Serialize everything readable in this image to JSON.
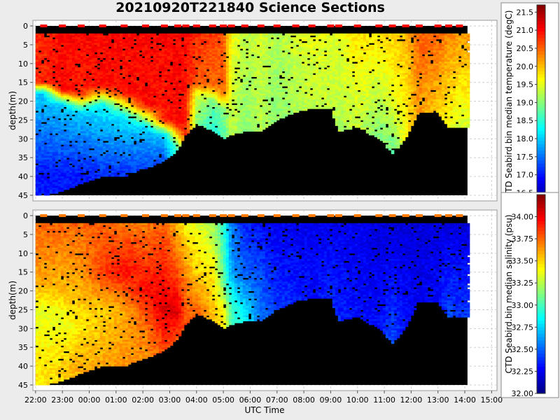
{
  "title": "20210920T221840 Science Sections",
  "chart_data": [
    {
      "type": "heatmap",
      "name": "temperature",
      "ylabel": "depth(m)",
      "ylim": [
        46.5,
        -1.5
      ],
      "yticks": [
        0,
        5,
        10,
        15,
        20,
        25,
        30,
        35,
        40,
        45
      ],
      "colorbar_label": "CTD Seabird.bin median temperature (degC)",
      "colorbar_range": [
        16.2,
        21.7
      ],
      "colorbar_ticks": [
        "16.5",
        "17.0",
        "17.5",
        "18.0",
        "18.5",
        "19.0",
        "19.5",
        "20.0",
        "20.5",
        "21.0",
        "21.5"
      ],
      "colorbar_tick_values": [
        16.5,
        17.0,
        17.5,
        18.0,
        18.5,
        19.0,
        19.5,
        20.0,
        20.5,
        21.0,
        21.5
      ],
      "surface_value": 21.0,
      "profiles": [
        {
          "t": 22.3,
          "bottom": 45,
          "pts": [
            [
              2,
              20.8
            ],
            [
              15,
              20.8
            ],
            [
              18,
              18.0
            ],
            [
              40,
              17.0
            ]
          ]
        },
        {
          "t": 23.0,
          "bottom": 44,
          "pts": [
            [
              2,
              21.0
            ],
            [
              17,
              21.0
            ],
            [
              21,
              18.0
            ],
            [
              40,
              17.0
            ]
          ]
        },
        {
          "t": 23.7,
          "bottom": 42,
          "pts": [
            [
              2,
              21.0
            ],
            [
              18,
              20.8
            ],
            [
              23,
              18.0
            ],
            [
              40,
              17.0
            ]
          ]
        },
        {
          "t": 24.5,
          "bottom": 40,
          "pts": [
            [
              2,
              21.0
            ],
            [
              16,
              21.0
            ],
            [
              21,
              18.2
            ],
            [
              40,
              17.1
            ]
          ]
        },
        {
          "t": 25.3,
          "bottom": 40,
          "pts": [
            [
              2,
              21.0
            ],
            [
              18,
              20.9
            ],
            [
              24,
              18.2
            ],
            [
              40,
              17.1
            ]
          ]
        },
        {
          "t": 26.1,
          "bottom": 38,
          "pts": [
            [
              2,
              21.0
            ],
            [
              21,
              21.0
            ],
            [
              27,
              18.0
            ],
            [
              38,
              17.2
            ]
          ]
        },
        {
          "t": 26.8,
          "bottom": 36,
          "pts": [
            [
              2,
              21.0
            ],
            [
              25,
              20.9
            ],
            [
              29,
              18.0
            ],
            [
              36,
              17.3
            ]
          ]
        },
        {
          "t": 27.3,
          "bottom": 33,
          "pts": [
            [
              2,
              21.0
            ],
            [
              26,
              21.0
            ],
            [
              32,
              18.8
            ]
          ]
        },
        {
          "t": 27.6,
          "bottom": 29,
          "pts": [
            [
              2,
              21.0
            ],
            [
              29,
              20.8
            ]
          ]
        },
        {
          "t": 28.0,
          "bottom": 26,
          "pts": [
            [
              2,
              20.8
            ],
            [
              15,
              20.6
            ],
            [
              18,
              19.5
            ],
            [
              25,
              19.0
            ]
          ]
        },
        {
          "t": 28.6,
          "bottom": 28,
          "pts": [
            [
              2,
              20.7
            ],
            [
              16,
              20.4
            ],
            [
              20,
              18.9
            ],
            [
              28,
              18.4
            ]
          ]
        },
        {
          "t": 29.0,
          "bottom": 30,
          "pts": [
            [
              2,
              20.6
            ],
            [
              18,
              20.5
            ],
            [
              22,
              19.0
            ],
            [
              30,
              18.6
            ]
          ]
        },
        {
          "t": 29.3,
          "bottom": 29,
          "pts": [
            [
              2,
              19.6
            ],
            [
              29,
              19.3
            ]
          ]
        },
        {
          "t": 29.8,
          "bottom": 28,
          "pts": [
            [
              2,
              19.3
            ],
            [
              28,
              19.0
            ]
          ]
        },
        {
          "t": 30.4,
          "bottom": 28,
          "pts": [
            [
              2,
              19.4
            ],
            [
              28,
              19.2
            ]
          ]
        },
        {
          "t": 31.0,
          "bottom": 25,
          "pts": [
            [
              2,
              19.2
            ],
            [
              25,
              19.0
            ]
          ]
        },
        {
          "t": 31.7,
          "bottom": 23,
          "pts": [
            [
              2,
              19.4
            ],
            [
              23,
              19.2
            ]
          ]
        },
        {
          "t": 32.3,
          "bottom": 22,
          "pts": [
            [
              2,
              19.5
            ],
            [
              22,
              19.3
            ]
          ]
        },
        {
          "t": 33.0,
          "bottom": 22,
          "pts": [
            [
              2,
              19.5
            ],
            [
              22,
              19.3
            ]
          ]
        },
        {
          "t": 33.3,
          "bottom": 28,
          "pts": [
            [
              2,
              19.5
            ],
            [
              28,
              19.2
            ]
          ]
        },
        {
          "t": 34.0,
          "bottom": 27,
          "pts": [
            [
              2,
              19.8
            ],
            [
              27,
              19.3
            ]
          ]
        },
        {
          "t": 34.8,
          "bottom": 30,
          "pts": [
            [
              2,
              19.8
            ],
            [
              28,
              19.0
            ]
          ]
        },
        {
          "t": 35.3,
          "bottom": 34,
          "pts": [
            [
              2,
              19.9
            ],
            [
              20,
              19.5
            ],
            [
              34,
              18.8
            ]
          ]
        },
        {
          "t": 35.8,
          "bottom": 30,
          "pts": [
            [
              2,
              20.0
            ],
            [
              30,
              19.6
            ]
          ]
        },
        {
          "t": 36.3,
          "bottom": 23,
          "pts": [
            [
              2,
              20.5
            ],
            [
              23,
              20.2
            ]
          ]
        },
        {
          "t": 37.0,
          "bottom": 23,
          "pts": [
            [
              2,
              20.5
            ],
            [
              23,
              19.9
            ]
          ]
        },
        {
          "t": 37.4,
          "bottom": 27,
          "pts": [
            [
              2,
              20.3
            ],
            [
              27,
              19.6
            ]
          ]
        },
        {
          "t": 37.8,
          "bottom": 27,
          "pts": [
            [
              2,
              20.2
            ],
            [
              27,
              19.4
            ]
          ]
        }
      ]
    },
    {
      "type": "heatmap",
      "name": "salinity",
      "ylabel": "depth(m)",
      "xlabel": "UTC Time",
      "ylim": [
        46.5,
        -1.5
      ],
      "yticks": [
        0,
        5,
        10,
        15,
        20,
        25,
        30,
        35,
        40,
        45
      ],
      "xticks": [
        "22:00",
        "23:00",
        "00:00",
        "01:00",
        "02:00",
        "03:00",
        "04:00",
        "05:00",
        "06:00",
        "07:00",
        "08:00",
        "09:00",
        "10:00",
        "11:00",
        "12:00",
        "13:00",
        "14:00",
        "15:00"
      ],
      "xtick_hours": [
        22,
        23,
        24,
        25,
        26,
        27,
        28,
        29,
        30,
        31,
        32,
        33,
        34,
        35,
        36,
        37,
        38,
        39
      ],
      "xlim": [
        21.9,
        39.2
      ],
      "colorbar_label": "CTD Seabird.bin median salinity (psu)",
      "colorbar_range": [
        32.0,
        34.25
      ],
      "colorbar_ticks": [
        "32.00",
        "32.25",
        "32.50",
        "32.75",
        "33.00",
        "33.25",
        "33.50",
        "33.75",
        "34.00"
      ],
      "colorbar_tick_values": [
        32.0,
        32.25,
        32.5,
        32.75,
        33.0,
        33.25,
        33.5,
        33.75,
        34.0
      ],
      "surface_value": 33.7,
      "profiles": [
        {
          "t": 22.3,
          "bottom": 45,
          "pts": [
            [
              2,
              33.75
            ],
            [
              18,
              33.6
            ],
            [
              25,
              33.35
            ],
            [
              40,
              33.45
            ]
          ]
        },
        {
          "t": 23.0,
          "bottom": 44,
          "pts": [
            [
              2,
              33.75
            ],
            [
              20,
              33.55
            ],
            [
              28,
              33.35
            ],
            [
              40,
              33.5
            ]
          ]
        },
        {
          "t": 23.7,
          "bottom": 42,
          "pts": [
            [
              2,
              33.75
            ],
            [
              18,
              33.6
            ],
            [
              30,
              33.45
            ],
            [
              40,
              33.6
            ]
          ]
        },
        {
          "t": 24.5,
          "bottom": 40,
          "pts": [
            [
              2,
              33.75
            ],
            [
              15,
              33.85
            ],
            [
              25,
              33.5
            ],
            [
              40,
              33.6
            ]
          ]
        },
        {
          "t": 25.3,
          "bottom": 40,
          "pts": [
            [
              2,
              33.7
            ],
            [
              15,
              33.95
            ],
            [
              25,
              33.6
            ],
            [
              40,
              33.65
            ]
          ]
        },
        {
          "t": 26.1,
          "bottom": 38,
          "pts": [
            [
              2,
              33.7
            ],
            [
              20,
              33.95
            ],
            [
              30,
              33.7
            ],
            [
              38,
              33.65
            ]
          ]
        },
        {
          "t": 26.8,
          "bottom": 36,
          "pts": [
            [
              2,
              33.75
            ],
            [
              25,
              34.05
            ],
            [
              36,
              33.8
            ]
          ]
        },
        {
          "t": 27.3,
          "bottom": 33,
          "pts": [
            [
              2,
              33.55
            ],
            [
              15,
              33.8
            ],
            [
              25,
              34.05
            ],
            [
              33,
              33.8
            ]
          ]
        },
        {
          "t": 27.6,
          "bottom": 29,
          "pts": [
            [
              2,
              33.4
            ],
            [
              18,
              33.7
            ],
            [
              29,
              33.8
            ]
          ]
        },
        {
          "t": 28.0,
          "bottom": 26,
          "pts": [
            [
              2,
              33.35
            ],
            [
              15,
              33.5
            ],
            [
              25,
              33.75
            ]
          ]
        },
        {
          "t": 28.6,
          "bottom": 28,
          "pts": [
            [
              2,
              33.2
            ],
            [
              18,
              33.5
            ],
            [
              28,
              33.55
            ]
          ]
        },
        {
          "t": 29.0,
          "bottom": 30,
          "pts": [
            [
              2,
              32.95
            ],
            [
              18,
              33.1
            ],
            [
              25,
              33.4
            ],
            [
              30,
              33.45
            ]
          ]
        },
        {
          "t": 29.3,
          "bottom": 29,
          "pts": [
            [
              2,
              32.55
            ],
            [
              15,
              32.65
            ],
            [
              25,
              33.0
            ]
          ]
        },
        {
          "t": 29.8,
          "bottom": 28,
          "pts": [
            [
              2,
              32.35
            ],
            [
              15,
              32.5
            ],
            [
              28,
              32.85
            ]
          ]
        },
        {
          "t": 30.4,
          "bottom": 28,
          "pts": [
            [
              2,
              32.3
            ],
            [
              28,
              32.55
            ]
          ]
        },
        {
          "t": 31.0,
          "bottom": 25,
          "pts": [
            [
              2,
              32.25
            ],
            [
              25,
              32.4
            ]
          ]
        },
        {
          "t": 31.7,
          "bottom": 23,
          "pts": [
            [
              2,
              32.25
            ],
            [
              23,
              32.35
            ]
          ]
        },
        {
          "t": 32.3,
          "bottom": 22,
          "pts": [
            [
              2,
              32.25
            ],
            [
              22,
              32.3
            ]
          ]
        },
        {
          "t": 33.0,
          "bottom": 22,
          "pts": [
            [
              2,
              32.25
            ],
            [
              22,
              32.35
            ]
          ]
        },
        {
          "t": 33.3,
          "bottom": 28,
          "pts": [
            [
              2,
              32.25
            ],
            [
              28,
              32.35
            ]
          ]
        },
        {
          "t": 34.0,
          "bottom": 27,
          "pts": [
            [
              2,
              32.25
            ],
            [
              27,
              32.3
            ]
          ]
        },
        {
          "t": 34.8,
          "bottom": 30,
          "pts": [
            [
              2,
              32.2
            ],
            [
              30,
              32.3
            ]
          ]
        },
        {
          "t": 35.3,
          "bottom": 34,
          "pts": [
            [
              2,
              32.2
            ],
            [
              34,
              32.45
            ]
          ]
        },
        {
          "t": 35.8,
          "bottom": 30,
          "pts": [
            [
              2,
              32.2
            ],
            [
              30,
              32.3
            ]
          ]
        },
        {
          "t": 36.3,
          "bottom": 23,
          "pts": [
            [
              2,
              32.2
            ],
            [
              23,
              32.25
            ]
          ]
        },
        {
          "t": 37.0,
          "bottom": 23,
          "pts": [
            [
              2,
              32.2
            ],
            [
              23,
              32.3
            ]
          ]
        },
        {
          "t": 37.4,
          "bottom": 27,
          "pts": [
            [
              2,
              32.2
            ],
            [
              27,
              32.45
            ]
          ]
        },
        {
          "t": 37.8,
          "bottom": 27,
          "pts": [
            [
              2,
              32.2
            ],
            [
              27,
              32.4
            ]
          ]
        }
      ]
    }
  ]
}
